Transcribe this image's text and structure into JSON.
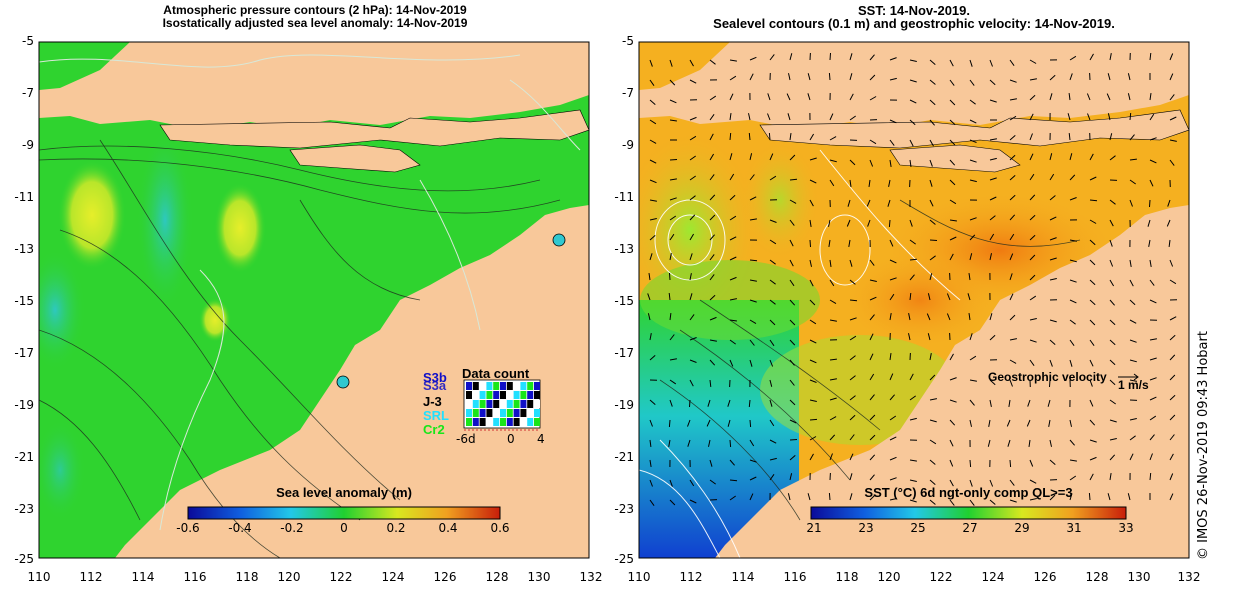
{
  "left_panel": {
    "title_line1": "Atmospheric pressure contours (2 hPa): 14-Nov-2019",
    "title_line2": "Isostatically adjusted sea level anomaly: 14-Nov-2019",
    "colorbar_label": "Sea level anomaly (m)",
    "colorbar_ticks": [
      "-0.6",
      "-0.4",
      "-0.2",
      "0",
      "0.2",
      "0.4",
      "0.6"
    ],
    "data_count": {
      "title": "Data count",
      "satellites": [
        "S3b",
        "S3a",
        "J-3",
        "SRL",
        "Cr2"
      ],
      "sat_colors": [
        "#1010c8",
        "#1010c8",
        "#000000",
        "#22e0ff",
        "#19e619"
      ],
      "axis_labels": [
        "-6d",
        "0",
        "4"
      ]
    }
  },
  "right_panel": {
    "title_line1": "SST: 14-Nov-2019.",
    "title_line2": "Sealevel contours (0.1 m) and geostrophic velocity: 14-Nov-2019.",
    "colorbar_label": "SST (°C) 6d ngt-only comp QL>=3",
    "colorbar_ticks": [
      "21",
      "23",
      "25",
      "27",
      "29",
      "31",
      "33"
    ],
    "velocity_label": "Geostrophic velocity",
    "velocity_scale": "1 m/s"
  },
  "y_ticks": [
    "-5",
    "-7",
    "-9",
    "-11",
    "-13",
    "-15",
    "-17",
    "-19",
    "-21",
    "-23",
    "-25"
  ],
  "x_ticks": [
    "110",
    "112",
    "114",
    "116",
    "118",
    "120",
    "122",
    "124",
    "126",
    "128",
    "130",
    "132"
  ],
  "credit": "© IMOS 26-Nov-2019 09:43 Hobart",
  "colors": {
    "land": "#f8c89a",
    "sla_ocean": "#2fd32f",
    "sst_ocean": "#f5b020"
  }
}
